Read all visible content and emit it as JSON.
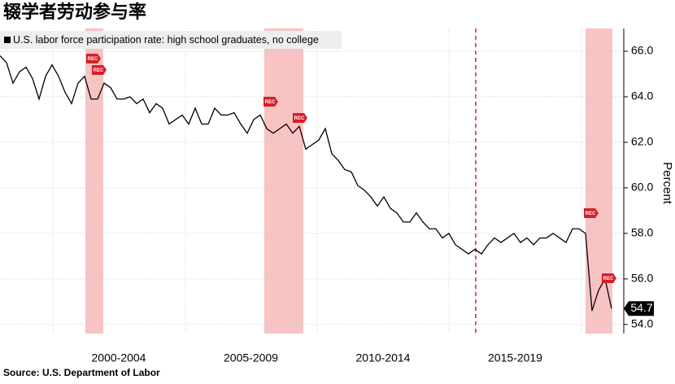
{
  "chart_data": {
    "type": "line",
    "title": "辍学者劳动参与率",
    "source": "Source: U.S. Department of Labor",
    "y_axis_label": "Percent",
    "periods": [
      "2000-2004",
      "2005-2009",
      "2010-2014",
      "2015-2019"
    ],
    "series": [
      {
        "name": "U.S. labor force participation rate: high school graduates, no college",
        "color": "#000000",
        "values": [
          65.8,
          65.5,
          64.6,
          65.1,
          65.3,
          64.8,
          63.9,
          64.9,
          65.4,
          64.9,
          64.2,
          63.7,
          64.6,
          64.9,
          63.9,
          63.9,
          64.6,
          64.4,
          63.9,
          63.9,
          64.0,
          63.7,
          63.9,
          63.3,
          63.7,
          63.5,
          62.8,
          63.0,
          63.2,
          62.8,
          63.5,
          62.8,
          62.8,
          63.5,
          63.2,
          63.2,
          63.3,
          62.8,
          62.4,
          63.0,
          63.2,
          62.6,
          62.4,
          62.6,
          62.8,
          62.4,
          62.7,
          61.7,
          61.9,
          62.1,
          62.6,
          61.5,
          61.2,
          60.8,
          60.7,
          60.1,
          59.9,
          59.6,
          59.2,
          59.6,
          59.1,
          58.9,
          58.5,
          58.5,
          58.9,
          58.5,
          58.2,
          58.2,
          57.8,
          58.0,
          57.5,
          57.3,
          57.1,
          57.3,
          57.1,
          57.5,
          57.8,
          57.6,
          57.8,
          58.0,
          57.6,
          57.8,
          57.5,
          57.8,
          57.8,
          58.0,
          57.8,
          57.6,
          58.2,
          58.2,
          58.0,
          54.6,
          55.5,
          56.0,
          54.7
        ]
      }
    ],
    "last_value": 54.7,
    "annotations": [
      "REC",
      "REC",
      "REC",
      "REC",
      "REC",
      "REC"
    ],
    "ylim": [
      53.6,
      67
    ],
    "yticks": [
      {
        "value": 54,
        "label": "54.0"
      },
      {
        "value": 56,
        "label": "56.0"
      },
      {
        "value": 58,
        "label": "58.0"
      },
      {
        "value": 60,
        "label": "60.0"
      },
      {
        "value": 62,
        "label": "62.0"
      },
      {
        "value": 64,
        "label": "64.0"
      },
      {
        "value": 66,
        "label": "66.0"
      }
    ],
    "grid": true
  }
}
